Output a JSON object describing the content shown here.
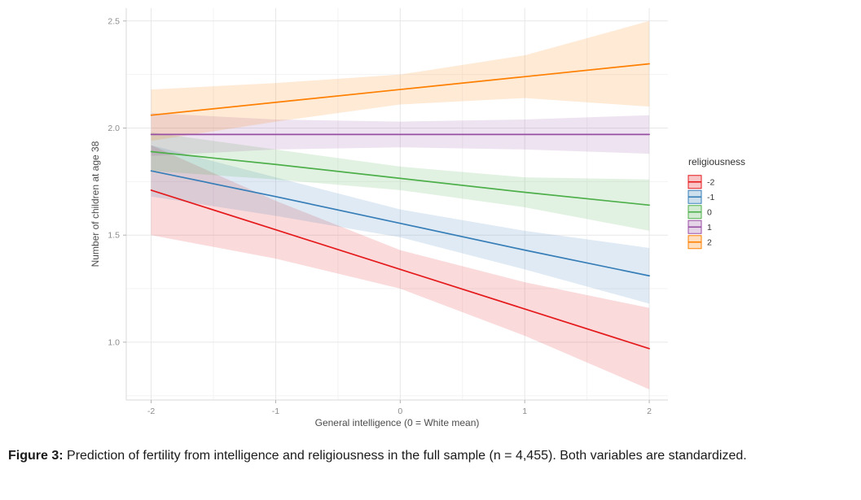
{
  "figure": {
    "caption_label": "Figure 3:",
    "caption_text": "Prediction of fertility from intelligence and religiousness in the full sample (n = 4,455). Both variables are standardized."
  },
  "chart_data": {
    "type": "line",
    "title": "",
    "xlabel": "General intelligence (0 = White mean)",
    "ylabel": "Number of children at age 38",
    "xlim": [
      -2.2,
      2.15
    ],
    "ylim": [
      0.73,
      2.56
    ],
    "x_ticks": [
      -2,
      -1,
      0,
      1,
      2
    ],
    "x_tick_labels": [
      "-2",
      "-1",
      "0",
      "1",
      "2"
    ],
    "y_ticks": [
      1.0,
      1.5,
      2.0,
      2.5
    ],
    "y_tick_labels": [
      "1.0",
      "1.5",
      "2.0",
      "2.5"
    ],
    "x_minor": [
      -1.5,
      -0.5,
      0.5,
      1.5
    ],
    "y_minor": [
      0.75,
      1.25,
      1.75,
      2.25
    ],
    "grid": true,
    "legend_title": "religiousness",
    "legend_position": "right",
    "ribbon_alpha": 0.16,
    "x": [
      -2,
      -1,
      0,
      1,
      2
    ],
    "series": [
      {
        "name": "-2",
        "color": "#e41a1c",
        "values": [
          1.71,
          1.525,
          1.34,
          1.155,
          0.97
        ],
        "ci_lower": [
          1.5,
          1.39,
          1.25,
          1.03,
          0.78
        ],
        "ci_upper": [
          1.92,
          1.66,
          1.43,
          1.28,
          1.16
        ]
      },
      {
        "name": "-1",
        "color": "#377eb8",
        "values": [
          1.8,
          1.68,
          1.555,
          1.43,
          1.31
        ],
        "ci_lower": [
          1.68,
          1.59,
          1.49,
          1.34,
          1.18
        ],
        "ci_upper": [
          1.92,
          1.77,
          1.62,
          1.52,
          1.44
        ]
      },
      {
        "name": "0",
        "color": "#4daf4a",
        "values": [
          1.89,
          1.83,
          1.765,
          1.7,
          1.64
        ],
        "ci_lower": [
          1.8,
          1.76,
          1.71,
          1.63,
          1.52
        ],
        "ci_upper": [
          1.98,
          1.9,
          1.82,
          1.77,
          1.76
        ]
      },
      {
        "name": "1",
        "color": "#984ea3",
        "values": [
          1.97,
          1.97,
          1.97,
          1.97,
          1.97
        ],
        "ci_lower": [
          1.87,
          1.9,
          1.91,
          1.9,
          1.88
        ],
        "ci_upper": [
          2.07,
          2.04,
          2.03,
          2.04,
          2.06
        ]
      },
      {
        "name": "2",
        "color": "#ff7f00",
        "values": [
          2.06,
          2.12,
          2.18,
          2.24,
          2.3
        ],
        "ci_lower": [
          1.94,
          2.03,
          2.11,
          2.14,
          2.1
        ],
        "ci_upper": [
          2.18,
          2.21,
          2.25,
          2.34,
          2.5
        ]
      }
    ]
  }
}
